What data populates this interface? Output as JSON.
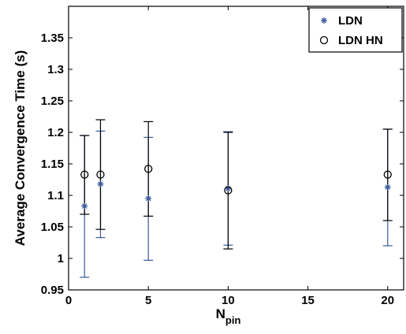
{
  "chart_data": {
    "type": "scatter",
    "xlabel": "N",
    "xlabel_subscript": "pin",
    "ylabel": "Average Convergence Time (s)",
    "xlim": [
      0,
      21
    ],
    "ylim": [
      0.95,
      1.4
    ],
    "x_ticks": [
      0,
      5,
      10,
      15,
      20
    ],
    "y_ticks": [
      0.95,
      1,
      1.05,
      1.1,
      1.15,
      1.2,
      1.25,
      1.3,
      1.35
    ],
    "x_tick_labels": [
      "0",
      "5",
      "10",
      "15",
      "20"
    ],
    "y_tick_labels": [
      "0.95",
      "1",
      "1.05",
      "1.1",
      "1.15",
      "1.2",
      "1.25",
      "1.3",
      "1.35"
    ],
    "grid": false,
    "legend": "top-right",
    "series": [
      {
        "name": "LDN",
        "marker": "asterisk",
        "color": "#3a5a9c",
        "x": [
          1,
          2,
          5,
          10,
          20
        ],
        "y": [
          1.083,
          1.118,
          1.095,
          1.111,
          1.113
        ],
        "err_low": [
          0.97,
          1.033,
          0.997,
          1.021,
          1.02
        ],
        "err_high": [
          1.195,
          1.202,
          1.192,
          1.201,
          1.205
        ]
      },
      {
        "name": "LDN HN",
        "marker": "circle",
        "color": "#000000",
        "x": [
          1,
          2,
          5,
          10,
          20
        ],
        "y": [
          1.133,
          1.133,
          1.142,
          1.108,
          1.133
        ],
        "err_low": [
          1.07,
          1.046,
          1.067,
          1.015,
          1.06
        ],
        "err_high": [
          1.195,
          1.22,
          1.217,
          1.2,
          1.205
        ]
      }
    ]
  }
}
